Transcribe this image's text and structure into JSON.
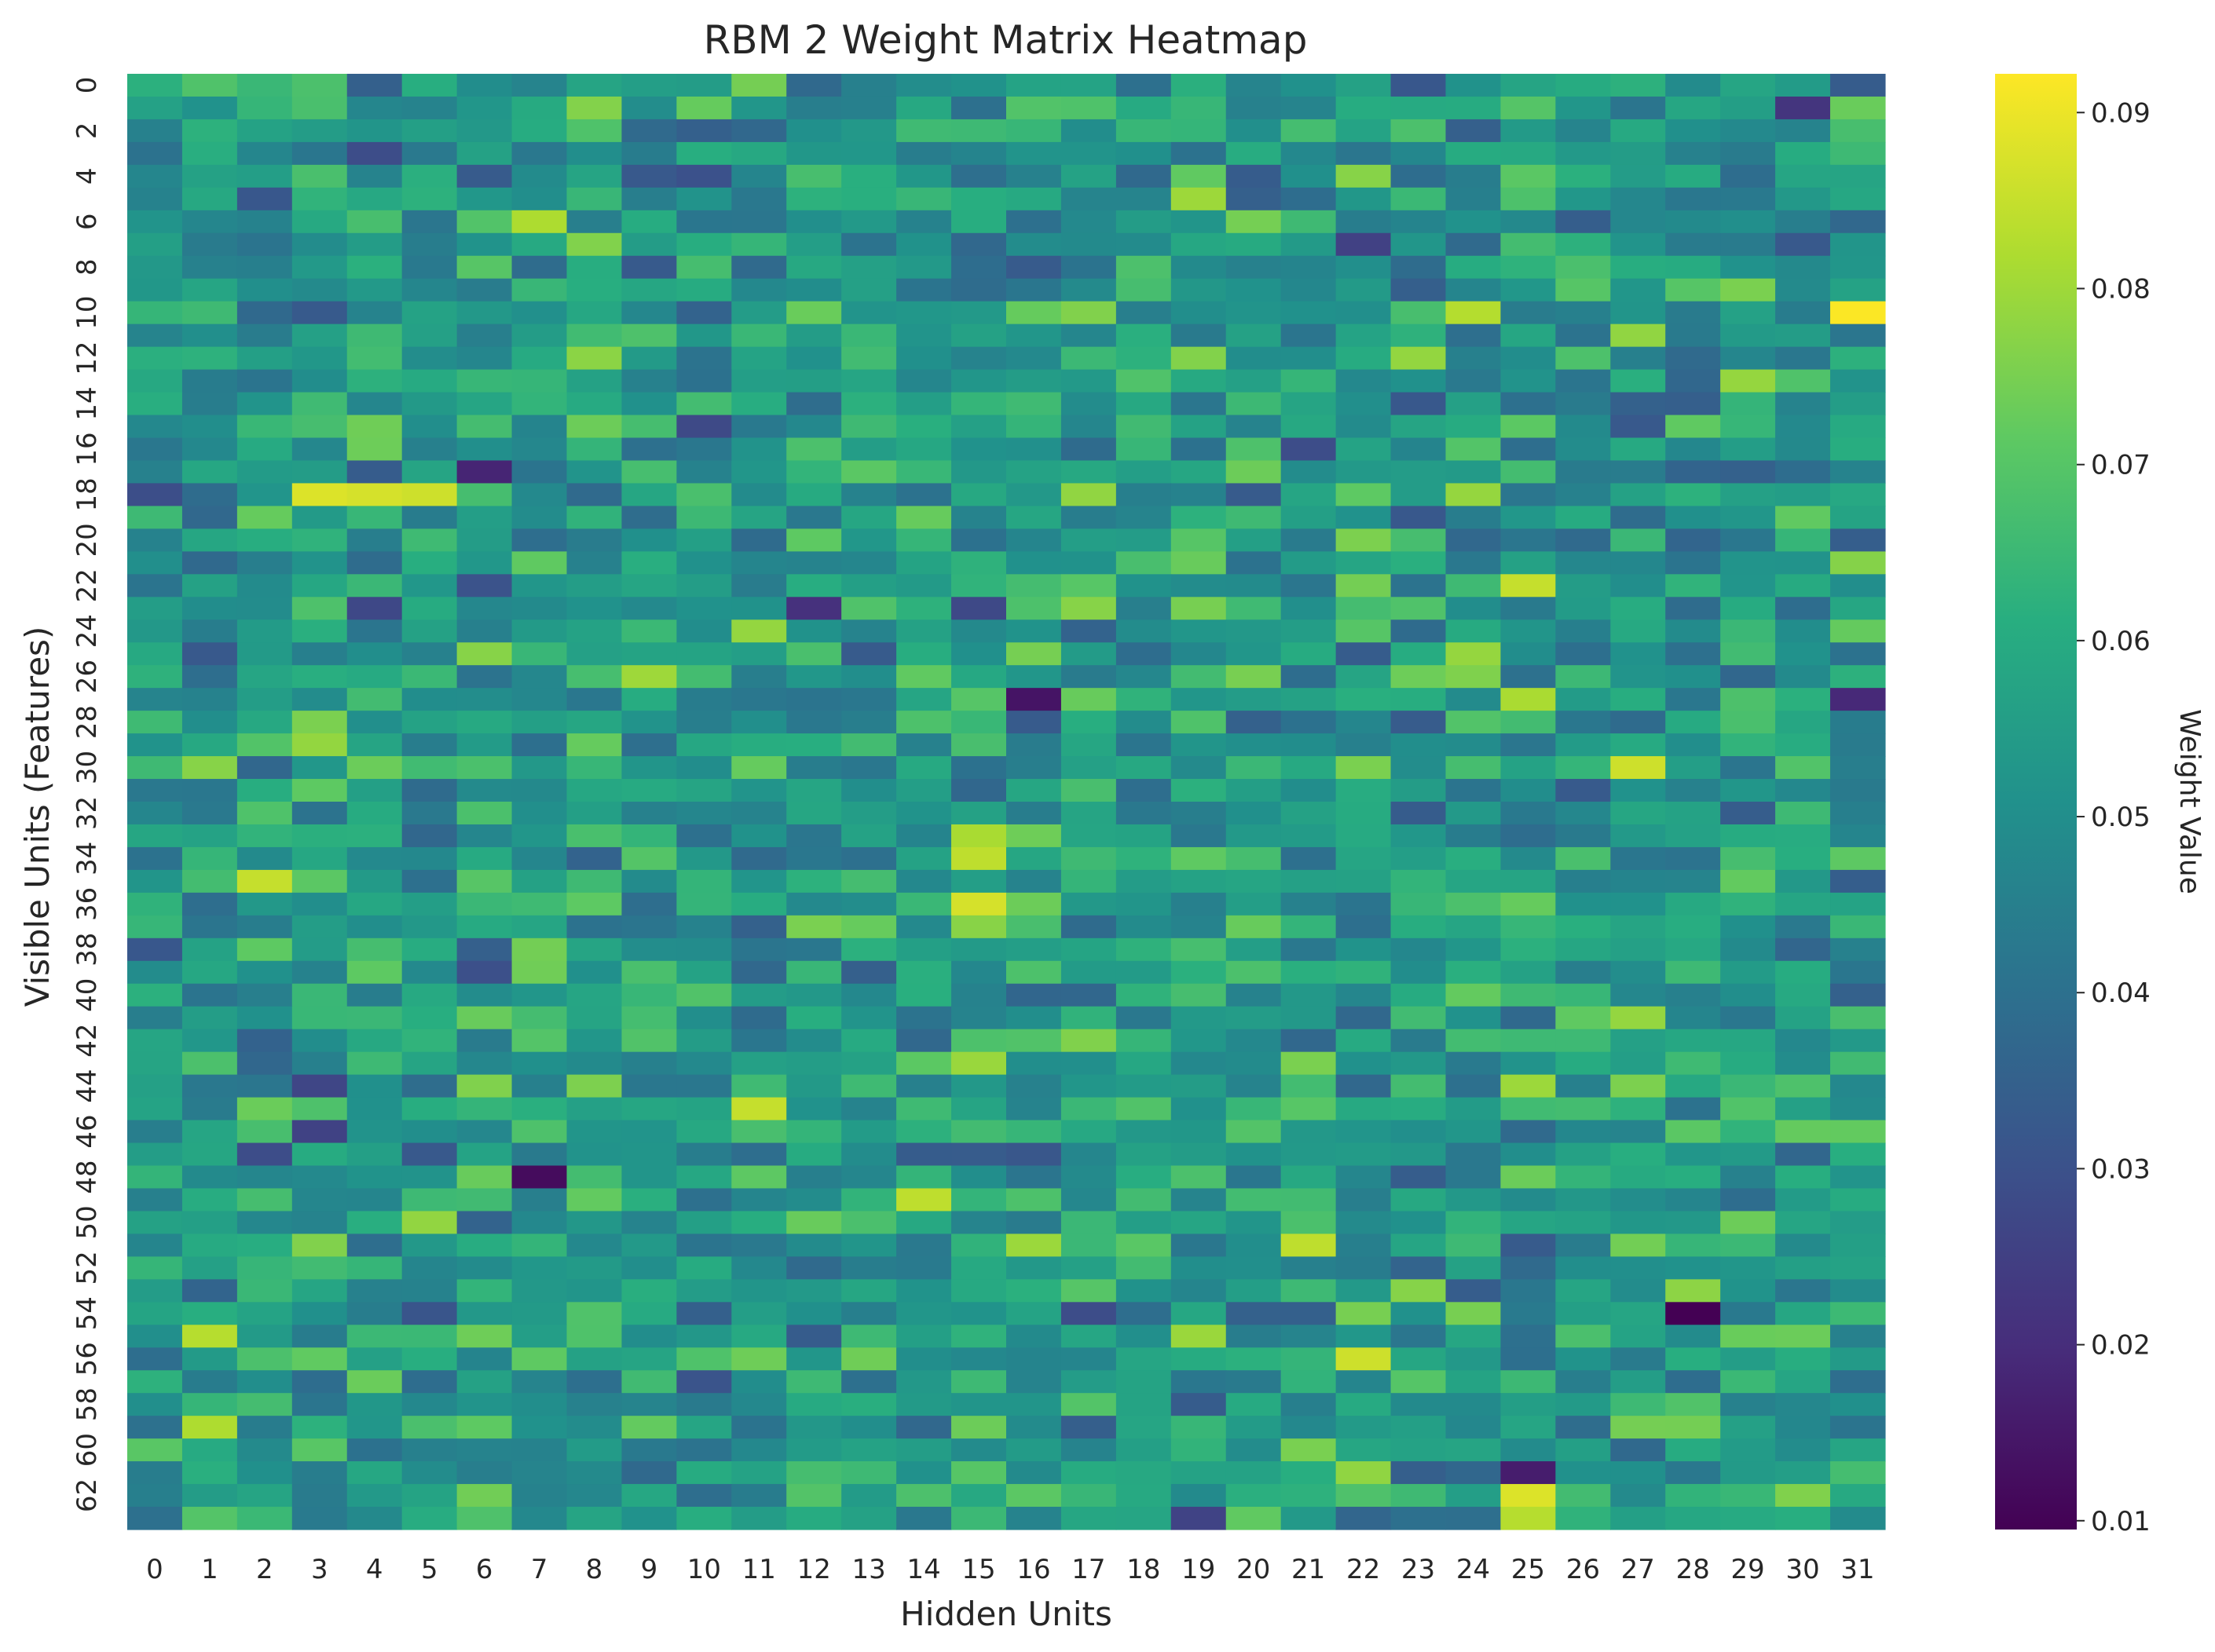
{
  "chart_data": {
    "type": "heatmap",
    "title": "RBM 2 Weight Matrix Heatmap",
    "xlabel": "Hidden Units",
    "ylabel": "Visible Units (Features)",
    "n_cols": 32,
    "n_rows": 64,
    "x_tick_labels": [
      "0",
      "1",
      "2",
      "3",
      "4",
      "5",
      "6",
      "7",
      "8",
      "9",
      "10",
      "11",
      "12",
      "13",
      "14",
      "15",
      "16",
      "17",
      "18",
      "19",
      "20",
      "21",
      "22",
      "23",
      "24",
      "25",
      "26",
      "27",
      "28",
      "29",
      "30",
      "31"
    ],
    "y_tick_labels": [
      "0",
      "2",
      "4",
      "6",
      "8",
      "10",
      "12",
      "14",
      "16",
      "18",
      "20",
      "22",
      "24",
      "26",
      "28",
      "30",
      "32",
      "34",
      "36",
      "38",
      "40",
      "42",
      "44",
      "46",
      "48",
      "50",
      "52",
      "54",
      "56",
      "58",
      "60",
      "62"
    ],
    "colormap": "viridis",
    "colorbar": {
      "label": "Weight Value",
      "vmin": 0.0095,
      "vmax": 0.0922,
      "ticks": [
        "0.01",
        "0.02",
        "0.03",
        "0.04",
        "0.05",
        "0.06",
        "0.07",
        "0.08",
        "0.09"
      ]
    },
    "grid": false,
    "legend": "colorbar-right",
    "notable_values": [
      {
        "row": 10,
        "col": 31,
        "value": 0.092
      },
      {
        "row": 18,
        "col": 3,
        "value": 0.088
      },
      {
        "row": 18,
        "col": 4,
        "value": 0.087
      },
      {
        "row": 18,
        "col": 5,
        "value": 0.086
      },
      {
        "row": 35,
        "col": 2,
        "value": 0.085
      },
      {
        "row": 34,
        "col": 15,
        "value": 0.084
      },
      {
        "row": 36,
        "col": 15,
        "value": 0.087
      },
      {
        "row": 30,
        "col": 27,
        "value": 0.086
      },
      {
        "row": 22,
        "col": 25,
        "value": 0.085
      },
      {
        "row": 45,
        "col": 11,
        "value": 0.085
      },
      {
        "row": 49,
        "col": 14,
        "value": 0.084
      },
      {
        "row": 51,
        "col": 21,
        "value": 0.084
      },
      {
        "row": 55,
        "col": 1,
        "value": 0.083
      },
      {
        "row": 56,
        "col": 22,
        "value": 0.086
      },
      {
        "row": 59,
        "col": 1,
        "value": 0.082
      },
      {
        "row": 62,
        "col": 25,
        "value": 0.088
      },
      {
        "row": 63,
        "col": 25,
        "value": 0.083
      },
      {
        "row": 54,
        "col": 28,
        "value": 0.0095
      },
      {
        "row": 48,
        "col": 7,
        "value": 0.012
      },
      {
        "row": 27,
        "col": 16,
        "value": 0.014
      },
      {
        "row": 61,
        "col": 25,
        "value": 0.016
      },
      {
        "row": 17,
        "col": 6,
        "value": 0.018
      },
      {
        "row": 27,
        "col": 31,
        "value": 0.019
      },
      {
        "row": 1,
        "col": 30,
        "value": 0.022
      },
      {
        "row": 23,
        "col": 12,
        "value": 0.021
      }
    ]
  }
}
